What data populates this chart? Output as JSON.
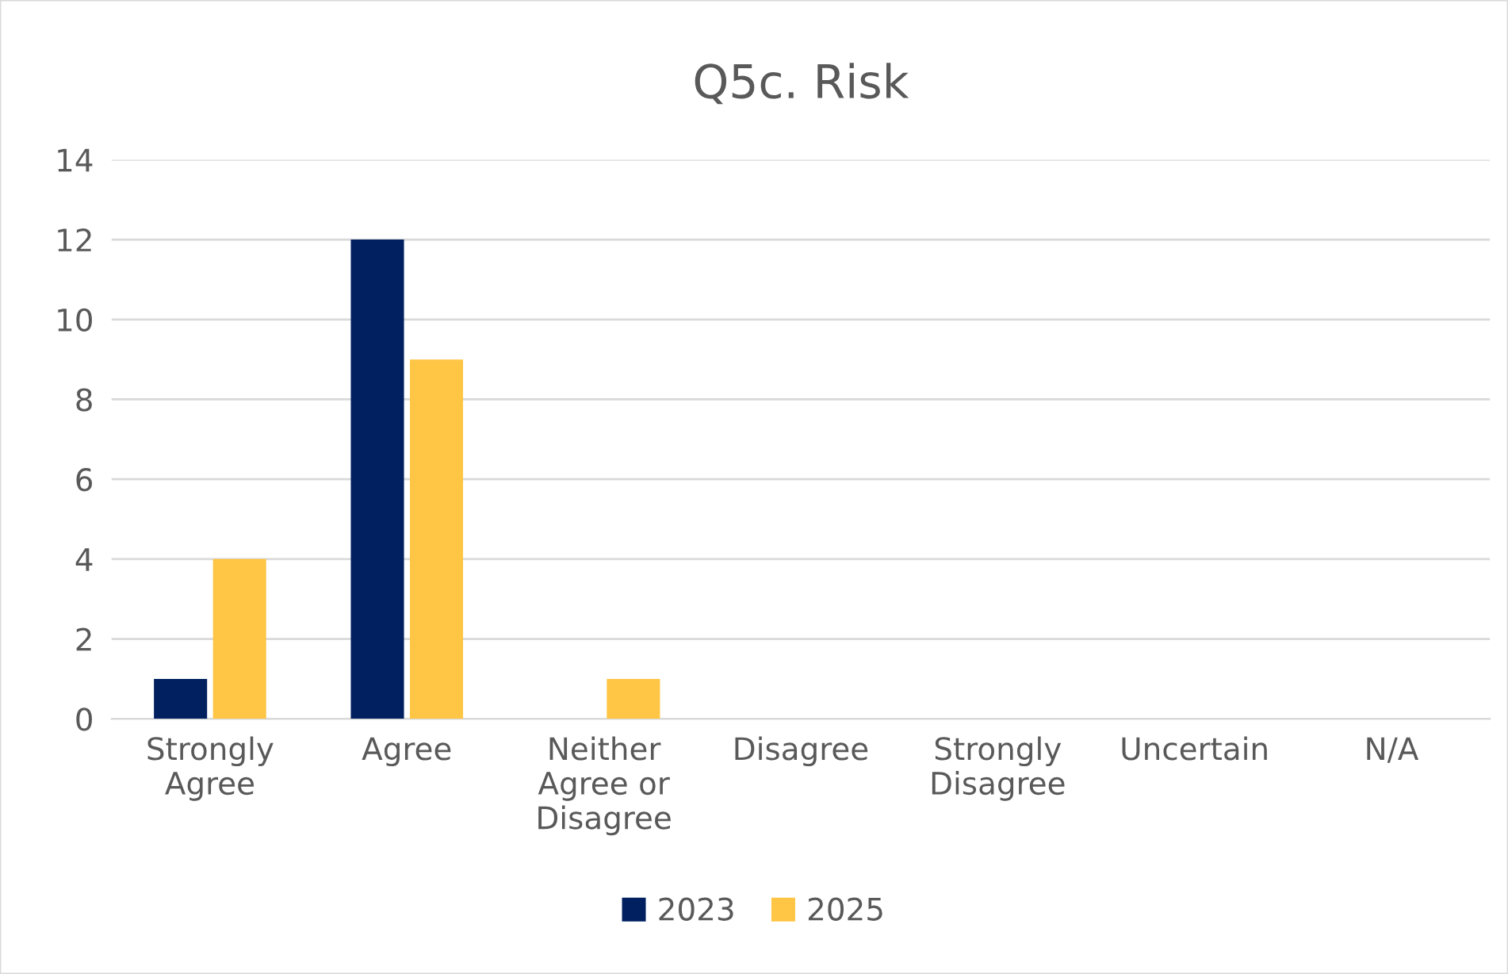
{
  "chart_data": {
    "type": "bar",
    "title": "Q5c. Risk",
    "categories": [
      "Strongly Agree",
      "Agree",
      "Neither Agree or Disagree",
      "Disagree",
      "Strongly Disagree",
      "Uncertain",
      "N/A"
    ],
    "series": [
      {
        "name": "2023",
        "color": "#002060",
        "values": [
          1,
          12,
          0,
          0,
          0,
          0,
          0
        ]
      },
      {
        "name": "2025",
        "color": "#ffc544",
        "values": [
          4,
          9,
          1,
          0,
          0,
          0,
          0
        ]
      }
    ],
    "ylim": [
      0,
      14
    ],
    "yticks": [
      0,
      2,
      4,
      6,
      8,
      10,
      12,
      14
    ],
    "grid": "y",
    "legend": "bottom"
  }
}
